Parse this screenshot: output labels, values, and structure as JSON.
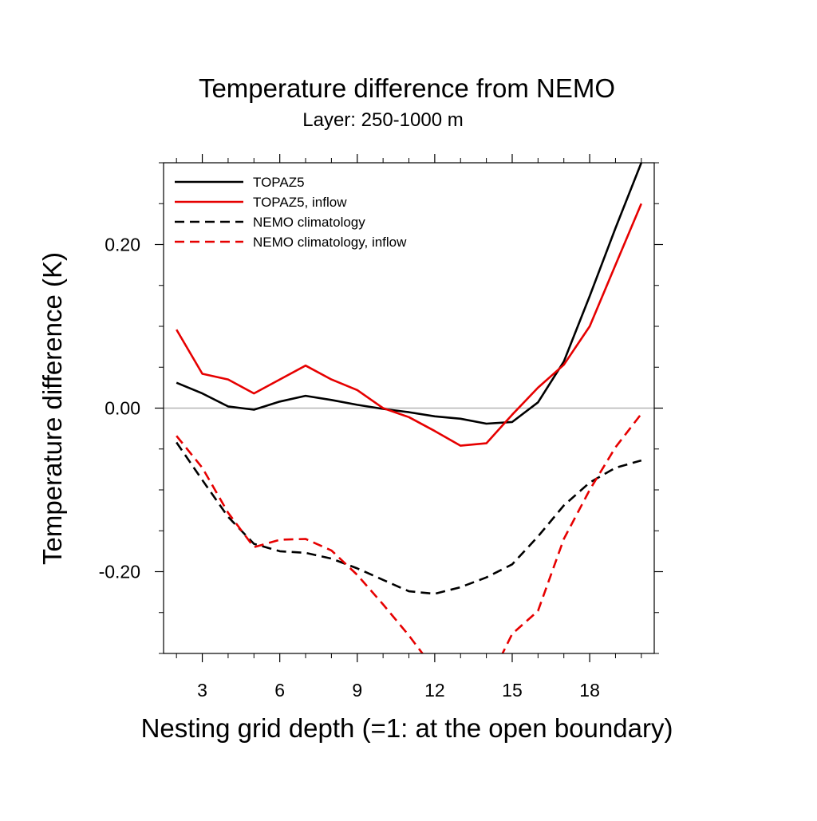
{
  "chart_data": {
    "type": "line",
    "title": "Temperature difference from NEMO",
    "subtitle": "Layer: 250-1000 m",
    "xlabel": "Nesting grid depth (=1: at the open boundary)",
    "ylabel": "Temperature difference (K)",
    "xlim": [
      1.5,
      20.5
    ],
    "ylim": [
      -0.3,
      0.3
    ],
    "x_ticks": [
      3,
      6,
      9,
      12,
      15,
      18
    ],
    "x_tick_labels": [
      "3",
      "6",
      "9",
      "12",
      "15",
      "18"
    ],
    "y_ticks": [
      -0.2,
      0.0,
      0.2
    ],
    "y_tick_labels": [
      "-0.20",
      "0.00",
      "0.20"
    ],
    "zero_line": true,
    "grid": false,
    "legend_position": "top-left",
    "series": [
      {
        "name": "TOPAZ5",
        "color": "#000000",
        "style": "solid",
        "x": [
          2,
          3,
          4,
          5,
          6,
          7,
          8,
          9,
          10,
          11,
          12,
          13,
          14,
          15,
          16,
          17,
          18,
          19,
          20
        ],
        "values": [
          0.031,
          0.018,
          0.002,
          -0.002,
          0.008,
          0.015,
          0.01,
          0.004,
          -0.001,
          -0.005,
          -0.01,
          -0.013,
          -0.019,
          -0.017,
          0.007,
          0.057,
          0.137,
          0.22,
          0.3
        ]
      },
      {
        "name": "TOPAZ5, inflow",
        "color": "#e60000",
        "style": "solid",
        "x": [
          2,
          3,
          4,
          5,
          6,
          7,
          8,
          9,
          10,
          11,
          12,
          13,
          14,
          15,
          16,
          17,
          18,
          19,
          20
        ],
        "values": [
          0.096,
          0.042,
          0.035,
          0.018,
          0.035,
          0.052,
          0.035,
          0.022,
          0.0,
          -0.011,
          -0.028,
          -0.046,
          -0.043,
          -0.008,
          0.025,
          0.053,
          0.1,
          0.175,
          0.25
        ]
      },
      {
        "name": "NEMO climatology",
        "color": "#000000",
        "style": "dashed",
        "x": [
          2,
          3,
          4,
          5,
          6,
          7,
          8,
          9,
          10,
          11,
          12,
          13,
          14,
          15,
          16,
          17,
          18,
          19,
          20
        ],
        "values": [
          -0.042,
          -0.088,
          -0.133,
          -0.166,
          -0.175,
          -0.177,
          -0.184,
          -0.196,
          -0.21,
          -0.224,
          -0.227,
          -0.219,
          -0.207,
          -0.191,
          -0.157,
          -0.119,
          -0.091,
          -0.073,
          -0.064
        ]
      },
      {
        "name": "NEMO climatology, inflow",
        "color": "#e60000",
        "style": "dashed",
        "x": [
          2,
          3,
          4,
          5,
          6,
          7,
          8,
          9,
          10,
          11,
          12,
          13,
          14,
          15,
          16,
          17,
          18,
          19,
          20
        ],
        "values": [
          -0.034,
          -0.073,
          -0.128,
          -0.17,
          -0.161,
          -0.16,
          -0.174,
          -0.204,
          -0.24,
          -0.278,
          -0.32,
          -0.365,
          -0.34,
          -0.276,
          -0.248,
          -0.16,
          -0.1,
          -0.048,
          -0.007
        ]
      }
    ]
  }
}
